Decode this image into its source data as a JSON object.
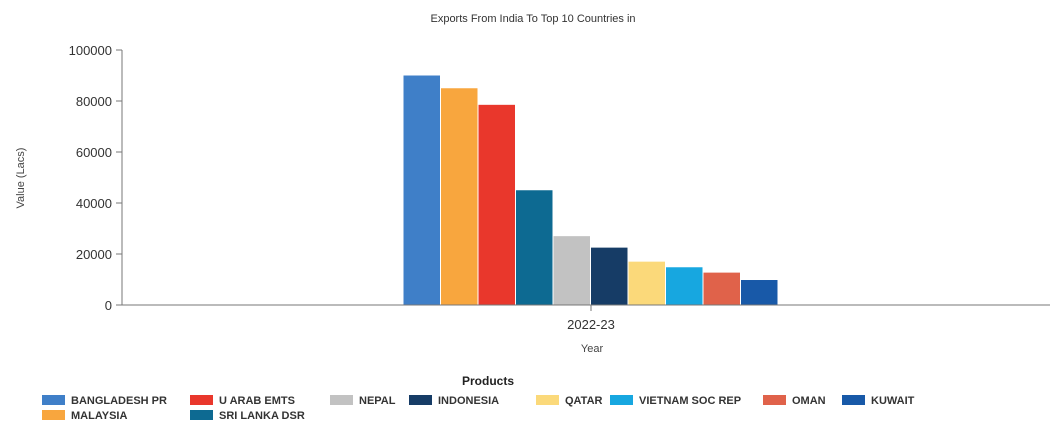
{
  "chart_data": {
    "type": "bar",
    "title": "Exports From India To Top 10 Countries in",
    "xlabel": "Year",
    "ylabel": "Value (Lacs)",
    "categories": [
      "2022-23"
    ],
    "ylim": [
      0,
      100000
    ],
    "yticks": [
      0,
      20000,
      40000,
      60000,
      80000,
      100000
    ],
    "legend_title": "Products",
    "legend_position": "bottom",
    "grid": false,
    "series": [
      {
        "name": "BANGLADESH PR",
        "values": [
          90000
        ],
        "color": "#3f7fc8"
      },
      {
        "name": "MALAYSIA",
        "values": [
          85000
        ],
        "color": "#f8a63e"
      },
      {
        "name": "U ARAB EMTS",
        "values": [
          78500
        ],
        "color": "#e9372c"
      },
      {
        "name": "SRI LANKA DSR",
        "values": [
          45000
        ],
        "color": "#0d6a92"
      },
      {
        "name": "NEPAL",
        "values": [
          27000
        ],
        "color": "#c2c2c2"
      },
      {
        "name": "INDONESIA",
        "values": [
          22500
        ],
        "color": "#163c66"
      },
      {
        "name": "QATAR",
        "values": [
          17000
        ],
        "color": "#fbd97a"
      },
      {
        "name": "VIETNAM SOC REP",
        "values": [
          14800
        ],
        "color": "#17a7e0"
      },
      {
        "name": "OMAN",
        "values": [
          12700
        ],
        "color": "#e0624a"
      },
      {
        "name": "KUWAIT",
        "values": [
          9800
        ],
        "color": "#1859a8"
      }
    ]
  }
}
